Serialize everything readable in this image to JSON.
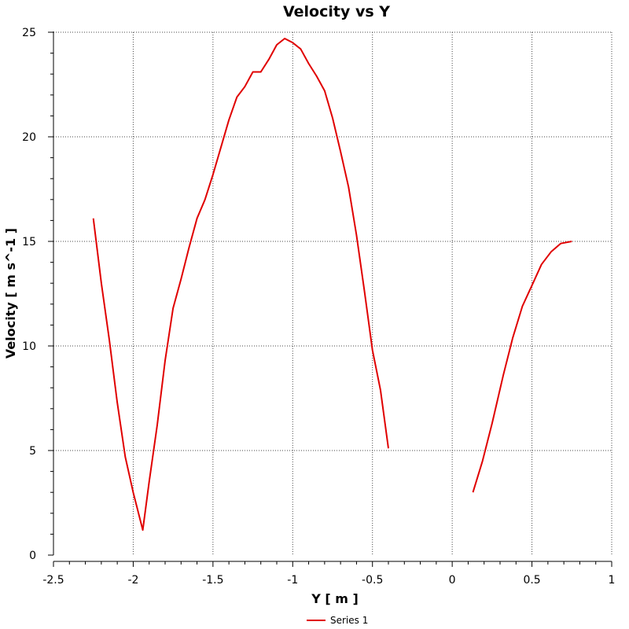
{
  "chart_data": {
    "type": "line",
    "title": "Velocity vs Y",
    "xlabel": "Y [ m ]",
    "ylabel": "Velocity [ m s^-1 ]",
    "xlim": [
      -2.5,
      1
    ],
    "ylim": [
      0,
      25
    ],
    "xticks": [
      -2.5,
      -2,
      -1.5,
      -1,
      -0.5,
      0,
      0.5,
      1
    ],
    "xtick_labels": [
      "-2.5",
      "-2",
      "-1.5",
      "-1",
      "-0.5",
      "0",
      "0.5",
      "1"
    ],
    "yticks": [
      0,
      5,
      10,
      15,
      20,
      25
    ],
    "ytick_labels": [
      "0",
      "5",
      "10",
      "15",
      "20",
      "25"
    ],
    "grid": true,
    "legend_position": "bottom-center",
    "series": [
      {
        "name": "Series 1",
        "color": "#e00000",
        "segments": [
          [
            [
              -2.25,
              16.1
            ],
            [
              -2.2,
              13.0
            ],
            [
              -2.15,
              10.3
            ],
            [
              -2.1,
              7.3
            ],
            [
              -2.05,
              4.7
            ],
            [
              -2.0,
              3.0
            ],
            [
              -1.94,
              1.2
            ],
            [
              -1.9,
              3.5
            ],
            [
              -1.85,
              6.2
            ],
            [
              -1.8,
              9.3
            ],
            [
              -1.75,
              11.8
            ],
            [
              -1.7,
              13.2
            ],
            [
              -1.65,
              14.7
            ],
            [
              -1.6,
              16.1
            ],
            [
              -1.55,
              17.0
            ],
            [
              -1.5,
              18.2
            ],
            [
              -1.45,
              19.5
            ],
            [
              -1.4,
              20.8
            ],
            [
              -1.35,
              21.9
            ],
            [
              -1.3,
              22.4
            ],
            [
              -1.25,
              23.1
            ],
            [
              -1.2,
              23.1
            ],
            [
              -1.15,
              23.7
            ],
            [
              -1.1,
              24.4
            ],
            [
              -1.05,
              24.7
            ],
            [
              -1.0,
              24.5
            ],
            [
              -0.95,
              24.2
            ],
            [
              -0.9,
              23.5
            ],
            [
              -0.85,
              22.9
            ],
            [
              -0.8,
              22.2
            ],
            [
              -0.75,
              20.9
            ],
            [
              -0.7,
              19.3
            ],
            [
              -0.65,
              17.6
            ],
            [
              -0.6,
              15.3
            ],
            [
              -0.55,
              12.6
            ],
            [
              -0.5,
              9.8
            ],
            [
              -0.45,
              7.9
            ],
            [
              -0.4,
              5.1
            ]
          ],
          [
            [
              0.13,
              3.0
            ],
            [
              0.19,
              4.5
            ],
            [
              0.25,
              6.3
            ],
            [
              0.32,
              8.6
            ],
            [
              0.38,
              10.4
            ],
            [
              0.44,
              11.9
            ],
            [
              0.5,
              12.9
            ],
            [
              0.56,
              13.9
            ],
            [
              0.62,
              14.5
            ],
            [
              0.68,
              14.9
            ],
            [
              0.75,
              15.0
            ]
          ]
        ]
      }
    ]
  }
}
